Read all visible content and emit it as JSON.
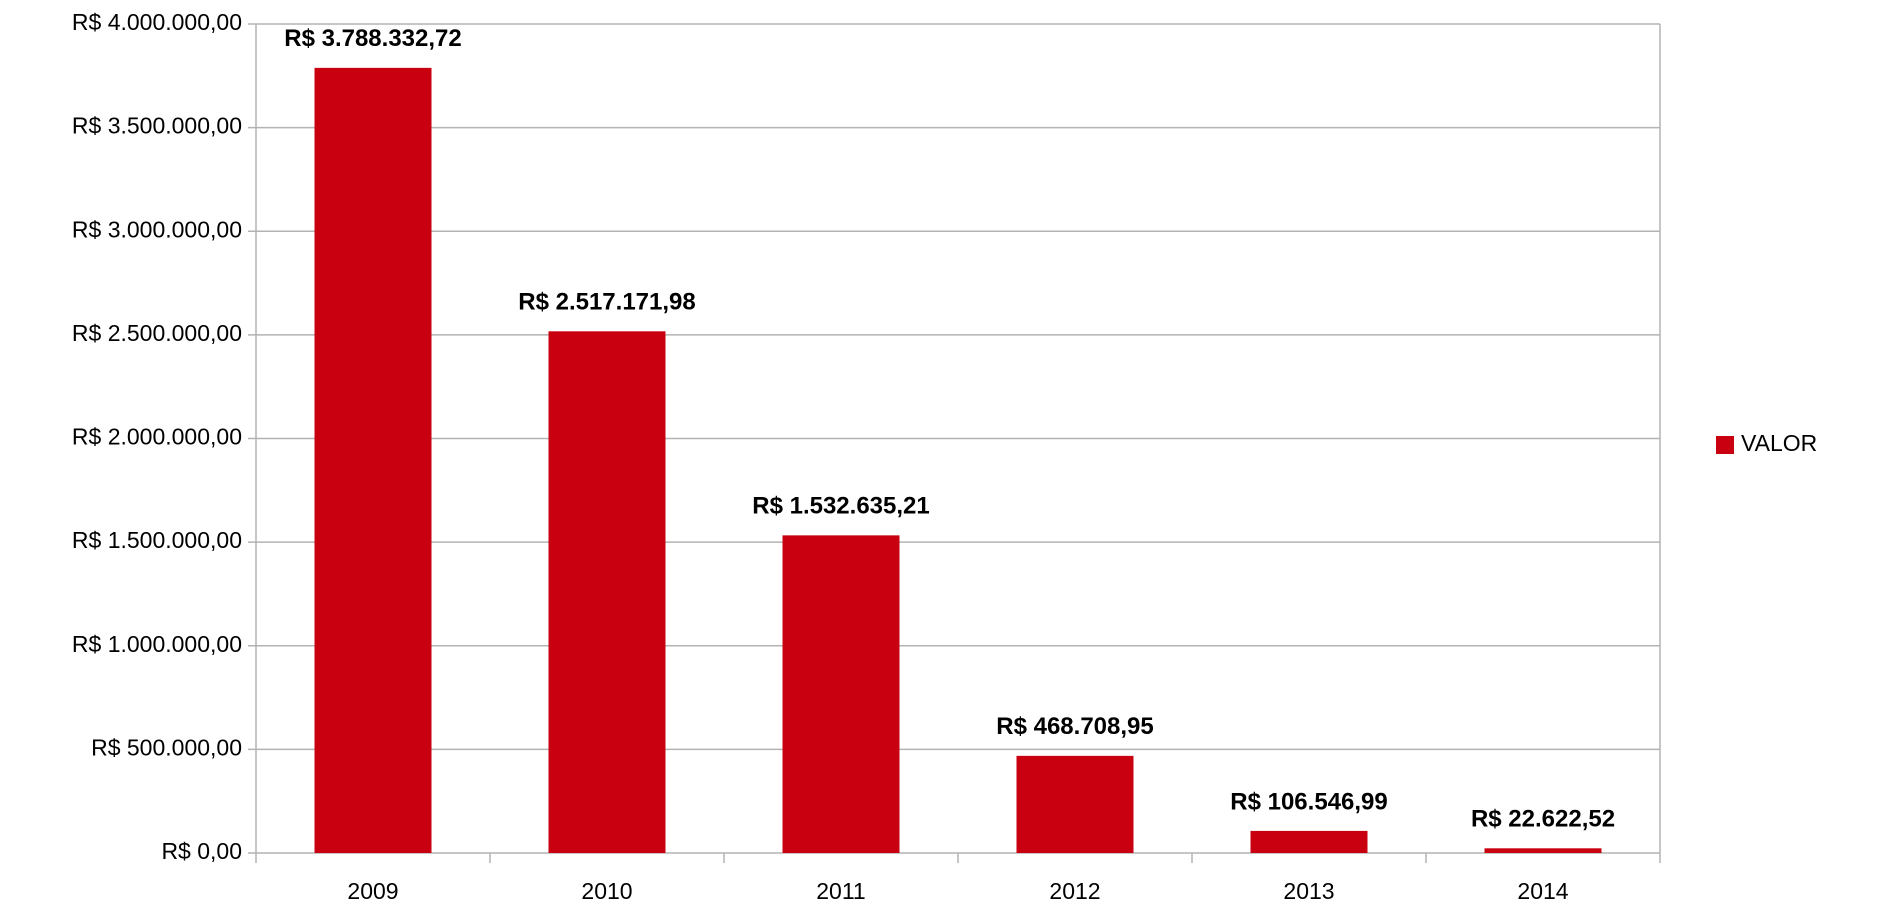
{
  "chart_data": {
    "type": "bar",
    "categories": [
      "2009",
      "2010",
      "2011",
      "2012",
      "2013",
      "2014"
    ],
    "series": [
      {
        "name": "VALOR",
        "color": "#c9000f",
        "values": [
          3788332.72,
          2517171.98,
          1532635.21,
          468708.95,
          106546.99,
          22622.52
        ],
        "value_labels": [
          "R$ 3.788.332,72",
          "R$ 2.517.171,98",
          "R$ 1.532.635,21",
          "R$ 468.708,95",
          "R$ 106.546,99",
          "R$ 22.622,52"
        ]
      }
    ],
    "ylim": [
      0,
      4000000
    ],
    "yticks": [
      {
        "value": 0,
        "label": "R$ 0,00"
      },
      {
        "value": 500000,
        "label": "R$ 500.000,00"
      },
      {
        "value": 1000000,
        "label": "R$ 1.000.000,00"
      },
      {
        "value": 1500000,
        "label": "R$ 1.500.000,00"
      },
      {
        "value": 2000000,
        "label": "R$ 2.000.000,00"
      },
      {
        "value": 2500000,
        "label": "R$ 2.500.000,00"
      },
      {
        "value": 3000000,
        "label": "R$ 3.000.000,00"
      },
      {
        "value": 3500000,
        "label": "R$ 3.500.000,00"
      },
      {
        "value": 4000000,
        "label": "R$ 4.000.000,00"
      }
    ],
    "grid": true,
    "legend": "right"
  }
}
